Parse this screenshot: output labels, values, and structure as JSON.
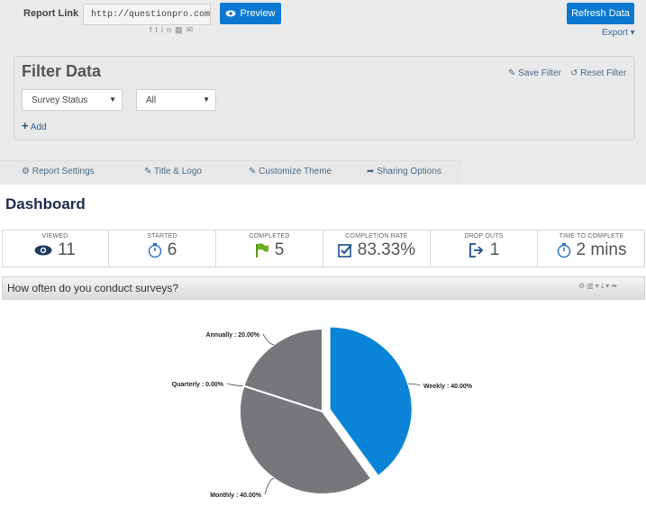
{
  "topbar": {
    "report_link_label": "Report Link",
    "report_url": "http://questionpro.com/t/P",
    "share_icons": [
      "facebook",
      "twitter",
      "linkedin",
      "embed",
      "email"
    ],
    "preview_label": "Preview",
    "refresh_label": "Refresh Data",
    "export_label": "Export"
  },
  "filter": {
    "title": "Filter Data",
    "save_label": "Save Filter",
    "reset_label": "Reset Filter",
    "field_select": "Survey Status",
    "value_select": "All",
    "add_label": "Add"
  },
  "tabs": [
    {
      "label": "Report Settings",
      "icon": "gear-icon"
    },
    {
      "label": "Title & Logo",
      "icon": "edit-icon"
    },
    {
      "label": "Customize Theme",
      "icon": "edit-icon"
    },
    {
      "label": "Sharing Options",
      "icon": "share-icon"
    }
  ],
  "dashboard": {
    "title": "Dashboard",
    "stats": [
      {
        "label": "VIEWED",
        "value": "11",
        "icon": "eye-icon"
      },
      {
        "label": "STARTED",
        "value": "6",
        "icon": "stopwatch-icon"
      },
      {
        "label": "COMPLETED",
        "value": "5",
        "icon": "flag-icon"
      },
      {
        "label": "COMPLETION RATE",
        "value": "83.33%",
        "icon": "checkbox-icon"
      },
      {
        "label": "DROP OUTS",
        "value": "1",
        "icon": "exit-icon"
      },
      {
        "label": "TIME TO COMPLETE",
        "value": "2 mins",
        "icon": "stopwatch-icon"
      }
    ]
  },
  "colors": {
    "accent": "#0a78d0",
    "pie_blue": "#0a84d6",
    "pie_grey": "#77777b",
    "dashboard_title": "#1e2d4e"
  },
  "chart_data": {
    "type": "pie",
    "title": "How often do you conduct surveys?",
    "slices": [
      {
        "label": "Weekly",
        "value": 40.0,
        "display": "Weekly : 40.00%",
        "color": "#0a84d6",
        "exploded": true
      },
      {
        "label": "Monthly",
        "value": 40.0,
        "display": "Monthly : 40.00%",
        "color": "#77777b"
      },
      {
        "label": "Quarterly",
        "value": 0.0,
        "display": "Quarterly : 0.00%",
        "color": "#77777b"
      },
      {
        "label": "Annually",
        "value": 20.0,
        "display": "Annually : 20.00%",
        "color": "#77777b"
      }
    ]
  }
}
